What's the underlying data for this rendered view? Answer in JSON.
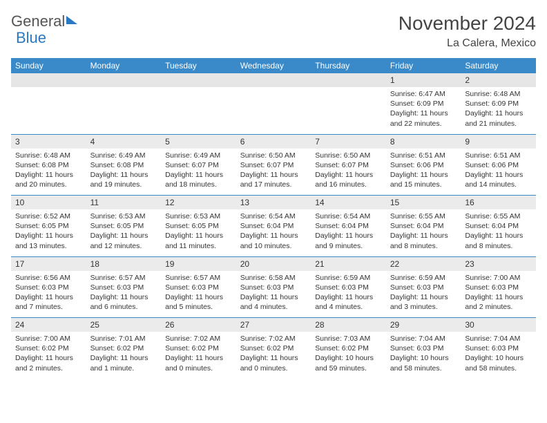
{
  "logo": {
    "part1": "General",
    "part2": "Blue"
  },
  "title": "November 2024",
  "location": "La Calera, Mexico",
  "dayNames": [
    "Sunday",
    "Monday",
    "Tuesday",
    "Wednesday",
    "Thursday",
    "Friday",
    "Saturday"
  ],
  "colors": {
    "headerBlue": "#3a8ac9",
    "dateRowGray": "#ebebeb",
    "text": "#333333",
    "logoBlue": "#2b78c2"
  },
  "weeks": [
    {
      "dates": [
        "",
        "",
        "",
        "",
        "",
        "1",
        "2"
      ],
      "cells": [
        [
          "",
          "",
          "",
          ""
        ],
        [
          "",
          "",
          "",
          ""
        ],
        [
          "",
          "",
          "",
          ""
        ],
        [
          "",
          "",
          "",
          ""
        ],
        [
          "",
          "",
          "",
          ""
        ],
        [
          "Sunrise: 6:47 AM",
          "Sunset: 6:09 PM",
          "Daylight: 11 hours",
          "and 22 minutes."
        ],
        [
          "Sunrise: 6:48 AM",
          "Sunset: 6:09 PM",
          "Daylight: 11 hours",
          "and 21 minutes."
        ]
      ]
    },
    {
      "dates": [
        "3",
        "4",
        "5",
        "6",
        "7",
        "8",
        "9"
      ],
      "cells": [
        [
          "Sunrise: 6:48 AM",
          "Sunset: 6:08 PM",
          "Daylight: 11 hours",
          "and 20 minutes."
        ],
        [
          "Sunrise: 6:49 AM",
          "Sunset: 6:08 PM",
          "Daylight: 11 hours",
          "and 19 minutes."
        ],
        [
          "Sunrise: 6:49 AM",
          "Sunset: 6:07 PM",
          "Daylight: 11 hours",
          "and 18 minutes."
        ],
        [
          "Sunrise: 6:50 AM",
          "Sunset: 6:07 PM",
          "Daylight: 11 hours",
          "and 17 minutes."
        ],
        [
          "Sunrise: 6:50 AM",
          "Sunset: 6:07 PM",
          "Daylight: 11 hours",
          "and 16 minutes."
        ],
        [
          "Sunrise: 6:51 AM",
          "Sunset: 6:06 PM",
          "Daylight: 11 hours",
          "and 15 minutes."
        ],
        [
          "Sunrise: 6:51 AM",
          "Sunset: 6:06 PM",
          "Daylight: 11 hours",
          "and 14 minutes."
        ]
      ]
    },
    {
      "dates": [
        "10",
        "11",
        "12",
        "13",
        "14",
        "15",
        "16"
      ],
      "cells": [
        [
          "Sunrise: 6:52 AM",
          "Sunset: 6:05 PM",
          "Daylight: 11 hours",
          "and 13 minutes."
        ],
        [
          "Sunrise: 6:53 AM",
          "Sunset: 6:05 PM",
          "Daylight: 11 hours",
          "and 12 minutes."
        ],
        [
          "Sunrise: 6:53 AM",
          "Sunset: 6:05 PM",
          "Daylight: 11 hours",
          "and 11 minutes."
        ],
        [
          "Sunrise: 6:54 AM",
          "Sunset: 6:04 PM",
          "Daylight: 11 hours",
          "and 10 minutes."
        ],
        [
          "Sunrise: 6:54 AM",
          "Sunset: 6:04 PM",
          "Daylight: 11 hours",
          "and 9 minutes."
        ],
        [
          "Sunrise: 6:55 AM",
          "Sunset: 6:04 PM",
          "Daylight: 11 hours",
          "and 8 minutes."
        ],
        [
          "Sunrise: 6:55 AM",
          "Sunset: 6:04 PM",
          "Daylight: 11 hours",
          "and 8 minutes."
        ]
      ]
    },
    {
      "dates": [
        "17",
        "18",
        "19",
        "20",
        "21",
        "22",
        "23"
      ],
      "cells": [
        [
          "Sunrise: 6:56 AM",
          "Sunset: 6:03 PM",
          "Daylight: 11 hours",
          "and 7 minutes."
        ],
        [
          "Sunrise: 6:57 AM",
          "Sunset: 6:03 PM",
          "Daylight: 11 hours",
          "and 6 minutes."
        ],
        [
          "Sunrise: 6:57 AM",
          "Sunset: 6:03 PM",
          "Daylight: 11 hours",
          "and 5 minutes."
        ],
        [
          "Sunrise: 6:58 AM",
          "Sunset: 6:03 PM",
          "Daylight: 11 hours",
          "and 4 minutes."
        ],
        [
          "Sunrise: 6:59 AM",
          "Sunset: 6:03 PM",
          "Daylight: 11 hours",
          "and 4 minutes."
        ],
        [
          "Sunrise: 6:59 AM",
          "Sunset: 6:03 PM",
          "Daylight: 11 hours",
          "and 3 minutes."
        ],
        [
          "Sunrise: 7:00 AM",
          "Sunset: 6:03 PM",
          "Daylight: 11 hours",
          "and 2 minutes."
        ]
      ]
    },
    {
      "dates": [
        "24",
        "25",
        "26",
        "27",
        "28",
        "29",
        "30"
      ],
      "cells": [
        [
          "Sunrise: 7:00 AM",
          "Sunset: 6:02 PM",
          "Daylight: 11 hours",
          "and 2 minutes."
        ],
        [
          "Sunrise: 7:01 AM",
          "Sunset: 6:02 PM",
          "Daylight: 11 hours",
          "and 1 minute."
        ],
        [
          "Sunrise: 7:02 AM",
          "Sunset: 6:02 PM",
          "Daylight: 11 hours",
          "and 0 minutes."
        ],
        [
          "Sunrise: 7:02 AM",
          "Sunset: 6:02 PM",
          "Daylight: 11 hours",
          "and 0 minutes."
        ],
        [
          "Sunrise: 7:03 AM",
          "Sunset: 6:02 PM",
          "Daylight: 10 hours",
          "and 59 minutes."
        ],
        [
          "Sunrise: 7:04 AM",
          "Sunset: 6:03 PM",
          "Daylight: 10 hours",
          "and 58 minutes."
        ],
        [
          "Sunrise: 7:04 AM",
          "Sunset: 6:03 PM",
          "Daylight: 10 hours",
          "and 58 minutes."
        ]
      ]
    }
  ]
}
